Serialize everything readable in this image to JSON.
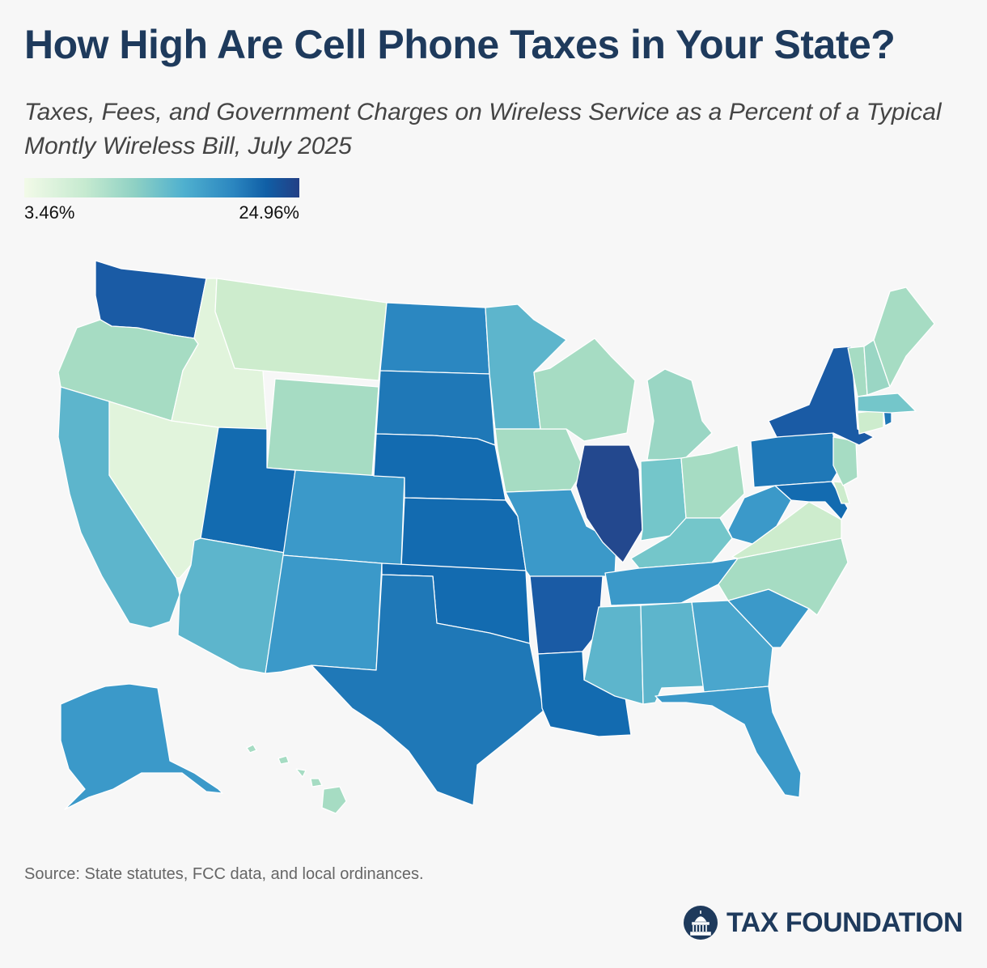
{
  "header": {
    "title": "How High Are Cell Phone Taxes in Your State?",
    "subtitle": "Taxes, Fees, and Government Charges on Wireless Service as a Percent of a Typical Montly Wireless Bill, July 2025"
  },
  "legend": {
    "min_label": "3.46%",
    "max_label": "24.96%",
    "min_value": 3.46,
    "max_value": 24.96
  },
  "footer": {
    "source": "Source: State statutes, FCC data, and local ordinances.",
    "brand": "TAX FOUNDATION"
  },
  "colors": {
    "c1": "#e1f4dc",
    "c2": "#cdeccd",
    "c3": "#a6dcc3",
    "c4": "#9ad6c4",
    "c5": "#74c6ca",
    "c6": "#5db5cc",
    "c7": "#4aa6cd",
    "c8": "#3b99c9",
    "c9": "#2b87c1",
    "c10": "#1f78b7",
    "c11": "#136bb0",
    "c12": "#1a5ba5",
    "c13": "#23488e",
    "brand": "#1e3a5c"
  },
  "states": {
    "WA": "c12",
    "OR": "c3",
    "CA": "c6",
    "ID": "c1",
    "NV": "c1",
    "MT": "c2",
    "WY": "c3",
    "UT": "c11",
    "AZ": "c6",
    "CO": "c8",
    "NM": "c8",
    "ND": "c9",
    "SD": "c10",
    "NE": "c11",
    "KS": "c11",
    "OK": "c11",
    "TX": "c10",
    "MN": "c6",
    "IA": "c3",
    "MO": "c8",
    "AR": "c12",
    "LA": "c11",
    "WI": "c3",
    "IL": "c13",
    "MI": "c4",
    "IN": "c5",
    "OH": "c3",
    "KY": "c5",
    "TN": "c8",
    "MS": "c6",
    "AL": "c6",
    "GA": "c7",
    "FL": "c8",
    "SC": "c8",
    "NC": "c3",
    "VA": "c2",
    "WV": "c8",
    "PA": "c10",
    "NY": "c12",
    "VT": "c3",
    "NH": "c4",
    "ME": "c3",
    "MA": "c5",
    "RI": "c10",
    "CT": "c2",
    "NJ": "c3",
    "DE": "c2",
    "MD": "c11",
    "AK": "c8",
    "HI": "c3"
  }
}
